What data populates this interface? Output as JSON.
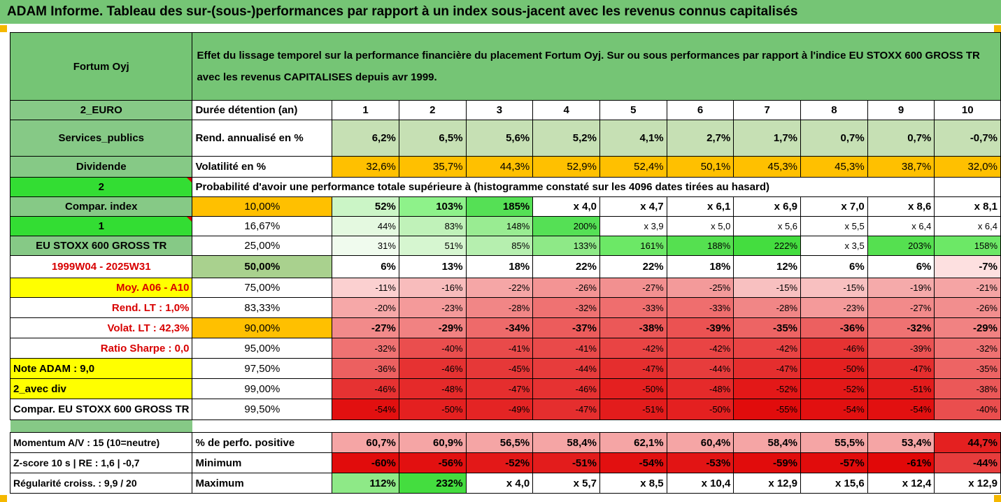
{
  "title": "ADAM Informe. Tableau des sur-(sous-)performances par rapport à un index sous-jacent avec les revenus connus capitalisés",
  "colors": {
    "header_green": "#75c575",
    "label_green": "#86c986",
    "bright_green": "#33dd33",
    "orange": "#ffc000",
    "yellow": "#ffff00",
    "label_red": "#d80000"
  },
  "header": {
    "company": "Fortum Oyj",
    "description": "Effet du lissage temporel sur la performance financière du placement Fortum Oyj. Sur ou sous performances par rapport à l'indice EU STOXX 600 GROSS TR avec les revenus CAPITALISES depuis avr 1999."
  },
  "labels": {
    "currency": "2_EURO",
    "sector": "Services_publics",
    "dividend": "Dividende",
    "level": "2",
    "compar_index": "Compar. index",
    "one": "1",
    "index_name": "EU STOXX 600 GROSS TR",
    "period": "1999W04 - 2025W31",
    "moy": "Moy. A06 - A10",
    "rend_lt": "Rend. LT :    1,0%",
    "volat_lt": "Volat. LT :   42,3%",
    "sharpe": "Ratio Sharpe :   0,0",
    "note": "Note ADAM : 9,0",
    "avec_div": "2_avec div",
    "compar_full": "Compar. EU STOXX 600 GROSS TR"
  },
  "durations": {
    "label": "Durée détention (an)",
    "values": [
      "1",
      "2",
      "3",
      "4",
      "5",
      "6",
      "7",
      "8",
      "9",
      "10"
    ]
  },
  "rend": {
    "label": "Rend. annualisé en %",
    "values": [
      "6,2%",
      "6,5%",
      "5,6%",
      "5,2%",
      "4,1%",
      "2,7%",
      "1,7%",
      "0,7%",
      "0,7%",
      "-0,7%"
    ]
  },
  "volat": {
    "label": "Volatilité en %",
    "values": [
      "32,6%",
      "35,7%",
      "44,3%",
      "52,9%",
      "52,4%",
      "50,1%",
      "45,3%",
      "45,3%",
      "38,7%",
      "32,0%"
    ]
  },
  "proba_label": "Probabilité d'avoir une performance totale supérieure à (histogramme constaté sur les 4096 dates tirées au hasard)",
  "quantiles": [
    {
      "q": "10,00%",
      "values": [
        "52%",
        "103%",
        "185%",
        "x 4,0",
        "x 4,7",
        "x 6,1",
        "x 6,9",
        "x 7,0",
        "x 8,6",
        "x 8,1"
      ],
      "colors": [
        "#cbf5c6",
        "#8ef28a",
        "#55e055",
        "#fff",
        "#fff",
        "#fff",
        "#fff",
        "#fff",
        "#fff",
        "#fff"
      ]
    },
    {
      "q": "16,67%",
      "values": [
        "44%",
        "83%",
        "148%",
        "200%",
        "x 3,9",
        "x 5,0",
        "x 5,6",
        "x 5,5",
        "x 6,4",
        "x 6,4"
      ],
      "colors": [
        "#e4f9e0",
        "#c0f2b9",
        "#99ec92",
        "#55e055",
        "#fff",
        "#fff",
        "#fff",
        "#fff",
        "#fff",
        "#fff"
      ]
    },
    {
      "q": "25,00%",
      "values": [
        "31%",
        "51%",
        "85%",
        "133%",
        "161%",
        "188%",
        "222%",
        "x 3,5",
        "203%",
        "158%"
      ],
      "colors": [
        "#f0fbee",
        "#d6f6d0",
        "#b6efaf",
        "#8ee987",
        "#6ce866",
        "#55e050",
        "#44dd3f",
        "#fff",
        "#55e050",
        "#6ce866"
      ]
    },
    {
      "q": "50,00%",
      "values": [
        "6%",
        "13%",
        "18%",
        "22%",
        "22%",
        "18%",
        "12%",
        "6%",
        "6%",
        "-7%"
      ],
      "colors": [
        "#fff",
        "#fff",
        "#fff",
        "#fff",
        "#fff",
        "#fff",
        "#fff",
        "#fff",
        "#fff",
        "#fde0e0"
      ]
    },
    {
      "q": "75,00%",
      "values": [
        "-11%",
        "-16%",
        "-22%",
        "-26%",
        "-27%",
        "-25%",
        "-15%",
        "-15%",
        "-19%",
        "-21%"
      ],
      "colors": [
        "#fbd0d0",
        "#f8bcbc",
        "#f5a6a6",
        "#f39494",
        "#f29090",
        "#f39a9a",
        "#f8c0c0",
        "#f8c0c0",
        "#f5aaaa",
        "#f5a4a4"
      ]
    },
    {
      "q": "83,33%",
      "values": [
        "-20%",
        "-23%",
        "-28%",
        "-32%",
        "-33%",
        "-33%",
        "-28%",
        "-23%",
        "-27%",
        "-26%"
      ],
      "colors": [
        "#f6a8a8",
        "#f49a9a",
        "#f18686",
        "#ef7272",
        "#ef6e6e",
        "#ef6e6e",
        "#f18686",
        "#f49a9a",
        "#f28a8a",
        "#f28e8e"
      ]
    },
    {
      "q": "90,00%",
      "values": [
        "-27%",
        "-29%",
        "-34%",
        "-37%",
        "-38%",
        "-39%",
        "-35%",
        "-36%",
        "-32%",
        "-29%"
      ],
      "colors": [
        "#f28a8a",
        "#f18282",
        "#ee6a6a",
        "#ec5c5c",
        "#eb5858",
        "#eb5252",
        "#ed6464",
        "#ec6060",
        "#ef7272",
        "#f18282"
      ]
    },
    {
      "q": "95,00%",
      "values": [
        "-32%",
        "-40%",
        "-41%",
        "-41%",
        "-42%",
        "-42%",
        "-42%",
        "-46%",
        "-39%",
        "-32%"
      ],
      "colors": [
        "#ef7272",
        "#ea4e4e",
        "#e94a4a",
        "#e94a4a",
        "#e94444",
        "#e94444",
        "#e94444",
        "#e63232",
        "#eb5252",
        "#ef7272"
      ]
    },
    {
      "q": "97,50%",
      "values": [
        "-36%",
        "-46%",
        "-45%",
        "-44%",
        "-47%",
        "-44%",
        "-47%",
        "-50%",
        "-47%",
        "-35%"
      ],
      "colors": [
        "#ec6060",
        "#e63232",
        "#e63838",
        "#e73c3c",
        "#e52e2e",
        "#e73c3c",
        "#e52e2e",
        "#e42020",
        "#e52e2e",
        "#ed6464"
      ]
    },
    {
      "q": "99,00%",
      "values": [
        "-46%",
        "-48%",
        "-47%",
        "-46%",
        "-50%",
        "-48%",
        "-52%",
        "-52%",
        "-51%",
        "-38%"
      ],
      "colors": [
        "#e63232",
        "#e52a2a",
        "#e52e2e",
        "#e63232",
        "#e42020",
        "#e52a2a",
        "#e31818",
        "#e31818",
        "#e31c1c",
        "#eb5858"
      ]
    },
    {
      "q": "99,50%",
      "values": [
        "-54%",
        "-50%",
        "-49%",
        "-47%",
        "-51%",
        "-50%",
        "-55%",
        "-54%",
        "-54%",
        "-40%"
      ],
      "colors": [
        "#e21010",
        "#e42020",
        "#e42424",
        "#e52e2e",
        "#e31c1c",
        "#e42020",
        "#e10c0c",
        "#e21010",
        "#e21010",
        "#ea4e4e"
      ]
    }
  ],
  "bottom": [
    {
      "left": "Momentum A/V : 15 (10=neutre)",
      "label": "% de perfo. positive",
      "values": [
        "60,7%",
        "60,9%",
        "56,5%",
        "58,4%",
        "62,1%",
        "60,4%",
        "58,4%",
        "55,5%",
        "53,4%",
        "44,7%"
      ],
      "colors": [
        "#f5a5a5",
        "#f5a5a5",
        "#f5a5a5",
        "#f5a5a5",
        "#f5a5a5",
        "#f5a5a5",
        "#f5a5a5",
        "#f5a5a5",
        "#f5a5a5",
        "#e42020"
      ]
    },
    {
      "left": "Z-score 10 s  | RE : 1,6 | -0,7",
      "label": "Minimum",
      "values": [
        "-60%",
        "-56%",
        "-52%",
        "-51%",
        "-54%",
        "-53%",
        "-59%",
        "-57%",
        "-61%",
        "-44%"
      ],
      "colors": [
        "#e10c0c",
        "#e21010",
        "#e31818",
        "#e31c1c",
        "#e21010",
        "#e21414",
        "#e10c0c",
        "#e10c0c",
        "#e10808",
        "#e73c3c"
      ]
    },
    {
      "left": "Régularité croiss. : 9,9 / 20",
      "label": "Maximum",
      "values": [
        "112%",
        "232%",
        "x 4,0",
        "x 5,7",
        "x 8,5",
        "x 10,4",
        "x 12,9",
        "x 15,6",
        "x 12,4",
        "x 12,9"
      ],
      "colors": [
        "#8ee987",
        "#44dd3f",
        "#fff",
        "#fff",
        "#fff",
        "#fff",
        "#fff",
        "#fff",
        "#fff",
        "#fff"
      ]
    }
  ]
}
